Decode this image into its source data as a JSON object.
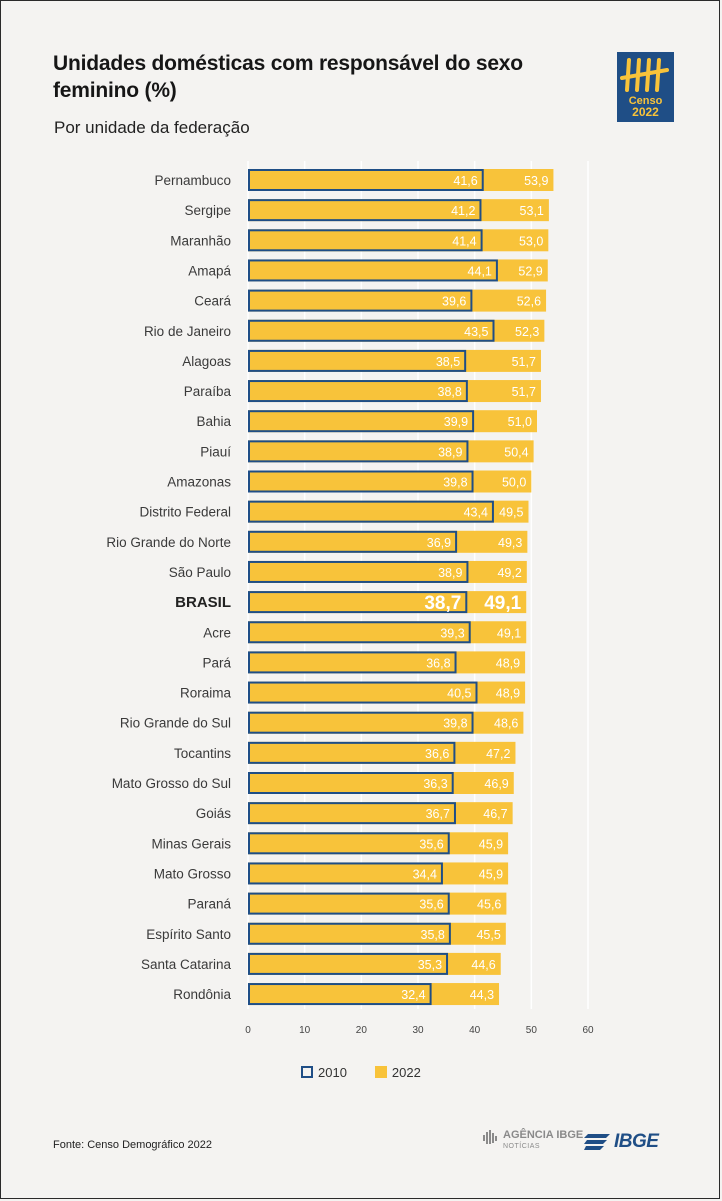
{
  "header": {
    "title": "Unidades domésticas com responsável do sexo feminino (%)",
    "subtitle": "Por unidade da federação"
  },
  "logo": {
    "line1": "Censo",
    "line2": "2022",
    "icon": "tally-marks-icon"
  },
  "legend": {
    "label_a": "2010",
    "label_b": "2022"
  },
  "footer": {
    "source": "Fonte: Censo Demográfico 2022",
    "agencia_main": "AGÊNCIA IBGE",
    "agencia_sub": "NOTÍCIAS",
    "ibge": "IBGE"
  },
  "colors": {
    "bar_2022": "#f8c33a",
    "bar_2010": "#f8c33a",
    "outline_2010": "#1f4e86",
    "brand_blue": "#1f4e86",
    "grid": "#ffffff",
    "background": "#f4f3f1"
  },
  "chart_data": {
    "type": "bar",
    "orientation": "horizontal",
    "title": "Unidades domésticas com responsável do sexo feminino (%)",
    "subtitle": "Por unidade da federação",
    "xlim": [
      0,
      60
    ],
    "xticks": [
      0,
      10,
      20,
      30,
      40,
      50,
      60
    ],
    "grid": true,
    "legend_position": "bottom",
    "highlight": "BRASIL",
    "categories": [
      "Pernambuco",
      "Sergipe",
      "Maranhão",
      "Amapá",
      "Ceará",
      "Rio de Janeiro",
      "Alagoas",
      "Paraíba",
      "Bahia",
      "Piauí",
      "Amazonas",
      "Distrito Federal",
      "Rio Grande do Norte",
      "São Paulo",
      "BRASIL",
      "Acre",
      "Pará",
      "Roraima",
      "Rio Grande do Sul",
      "Tocantins",
      "Mato Grosso do Sul",
      "Goiás",
      "Minas Gerais",
      "Mato Grosso",
      "Paraná",
      "Espírito Santo",
      "Santa Catarina",
      "Rondônia"
    ],
    "series": [
      {
        "name": "2010",
        "values": [
          41.6,
          41.2,
          41.4,
          44.1,
          39.6,
          43.5,
          38.5,
          38.8,
          39.9,
          38.9,
          39.8,
          43.4,
          36.9,
          38.9,
          38.7,
          39.3,
          36.8,
          40.5,
          39.8,
          36.6,
          36.3,
          36.7,
          35.6,
          34.4,
          35.6,
          35.8,
          35.3,
          32.4
        ],
        "labels": [
          "41,6",
          "41,2",
          "41,4",
          "44,1",
          "39,6",
          "43,5",
          "38,5",
          "38,8",
          "39,9",
          "38,9",
          "39,8",
          "43,4",
          "36,9",
          "38,9",
          "38,7",
          "39,3",
          "36,8",
          "40,5",
          "39,8",
          "36,6",
          "36,3",
          "36,7",
          "35,6",
          "34,4",
          "35,6",
          "35,8",
          "35,3",
          "32,4"
        ]
      },
      {
        "name": "2022",
        "values": [
          53.9,
          53.1,
          53.0,
          52.9,
          52.6,
          52.3,
          51.7,
          51.7,
          51.0,
          50.4,
          50.0,
          49.5,
          49.3,
          49.2,
          49.1,
          49.1,
          48.9,
          48.9,
          48.6,
          47.2,
          46.9,
          46.7,
          45.9,
          45.9,
          45.6,
          45.5,
          44.6,
          44.3
        ],
        "labels": [
          "53,9",
          "53,1",
          "53,0",
          "52,9",
          "52,6",
          "52,3",
          "51,7",
          "51,7",
          "51,0",
          "50,4",
          "50,0",
          "49,5",
          "49,3",
          "49,2",
          "49,1",
          "49,1",
          "48,9",
          "48,9",
          "48,6",
          "47,2",
          "46,9",
          "46,7",
          "45,9",
          "45,9",
          "45,6",
          "45,5",
          "44,6",
          "44,3"
        ]
      }
    ]
  }
}
